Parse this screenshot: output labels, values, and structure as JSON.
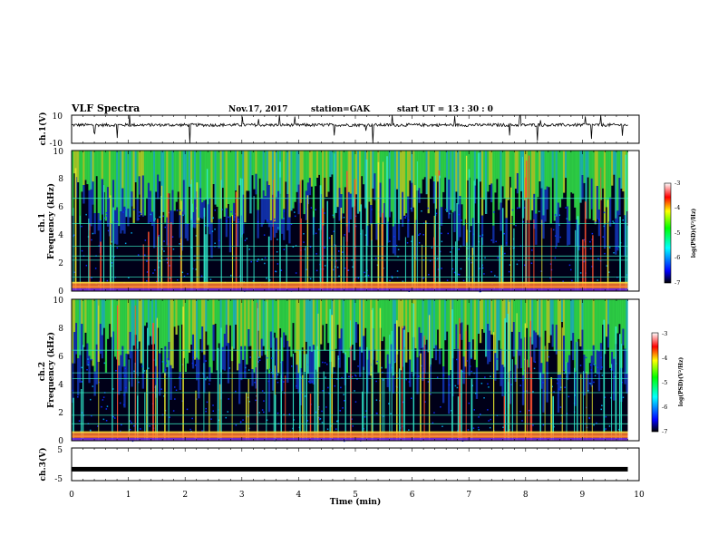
{
  "header": {
    "title": "VLF Spectra",
    "date": "Nov.17, 2017",
    "station": "station=GAK",
    "start": "start  UT  =   13 : 30 : 0"
  },
  "colors": {
    "spectrogram_background": "#000018",
    "line_color": "#000000",
    "colormap": [
      "#000000",
      "#0000ff",
      "#00ffff",
      "#00ff00",
      "#ffff00",
      "#ff0000",
      "#ffffff"
    ]
  },
  "chart_data": [
    {
      "type": "line",
      "name": "ch1-waveform",
      "ylabel": "ch.1(V)",
      "ylim": [
        -10,
        10
      ],
      "yticks": [
        "10",
        "-10"
      ],
      "xlim": [
        0,
        10
      ],
      "baseline_value": 3,
      "grid": false
    },
    {
      "type": "heatmap",
      "name": "ch1-spectrogram",
      "ylabel": "ch.1\nFrequency (kHz)",
      "ylim": [
        0,
        10
      ],
      "yticks": [
        "0",
        "2",
        "4",
        "6",
        "8",
        "10"
      ],
      "xlim": [
        0,
        10
      ],
      "persistent_line_frequencies_khz": [
        0.3,
        0.6,
        1.0,
        2.2,
        2.5,
        3.2,
        4.8,
        6.6
      ],
      "colorbar": {
        "label": "log(PSD)(V²/Hz)",
        "range": [
          -7,
          -3
        ],
        "ticks": [
          "-3",
          "-4",
          "-5",
          "-6",
          "-7"
        ]
      }
    },
    {
      "type": "heatmap",
      "name": "ch2-spectrogram",
      "ylabel": "ch.2\nFrequency (kHz)",
      "ylim": [
        0,
        10
      ],
      "yticks": [
        "0",
        "2",
        "4",
        "6",
        "8",
        "10"
      ],
      "xlim": [
        0,
        10
      ],
      "persistent_line_frequencies_khz": [
        0.3,
        0.6,
        1.2,
        1.8,
        3.4,
        4.4,
        4.8,
        6.4
      ],
      "colorbar": {
        "label": "log(PSD)(V²/Hz)",
        "range": [
          -7,
          -3
        ],
        "ticks": [
          "-3",
          "-4",
          "-5",
          "-6",
          "-7"
        ]
      }
    },
    {
      "type": "line",
      "name": "ch3-waveform",
      "ylabel": "ch.3(V)",
      "ylim": [
        -5,
        5
      ],
      "yticks": [
        "5",
        "-5"
      ],
      "xlim": [
        0,
        10
      ],
      "baseline_value": -1.5,
      "data_end": 9.8,
      "grid": false
    }
  ],
  "xaxis": {
    "label": "Time (min)",
    "ticks": [
      "0",
      "1",
      "2",
      "3",
      "4",
      "5",
      "6",
      "7",
      "8",
      "9",
      "10"
    ],
    "data_end": 9.8
  }
}
